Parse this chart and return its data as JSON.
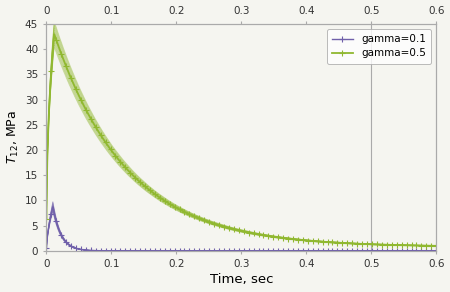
{
  "xlabel": "Time, sec",
  "ylabel": "T_{12}, MPa",
  "xlim": [
    0,
    0.6
  ],
  "ylim": [
    0,
    45
  ],
  "yticks": [
    0,
    5,
    10,
    15,
    20,
    25,
    30,
    35,
    40,
    45
  ],
  "xticks": [
    0.0,
    0.1,
    0.2,
    0.3,
    0.4,
    0.5,
    0.6
  ],
  "legend_labels": [
    "gamma=0.1",
    "gamma=0.5"
  ],
  "line1_color": "#7060aa",
  "line2_color": "#90b830",
  "background_color": "#f5f5f0",
  "peak_time1": 0.01,
  "peak_time2": 0.012,
  "peak_val1": 8.8,
  "peak_val2": 43.0,
  "decay1": 80.0,
  "decay2": 9.0,
  "steady1": 0.02,
  "steady2": 0.8,
  "n_traces": 15,
  "spread1": 0.12,
  "spread2": 0.06
}
